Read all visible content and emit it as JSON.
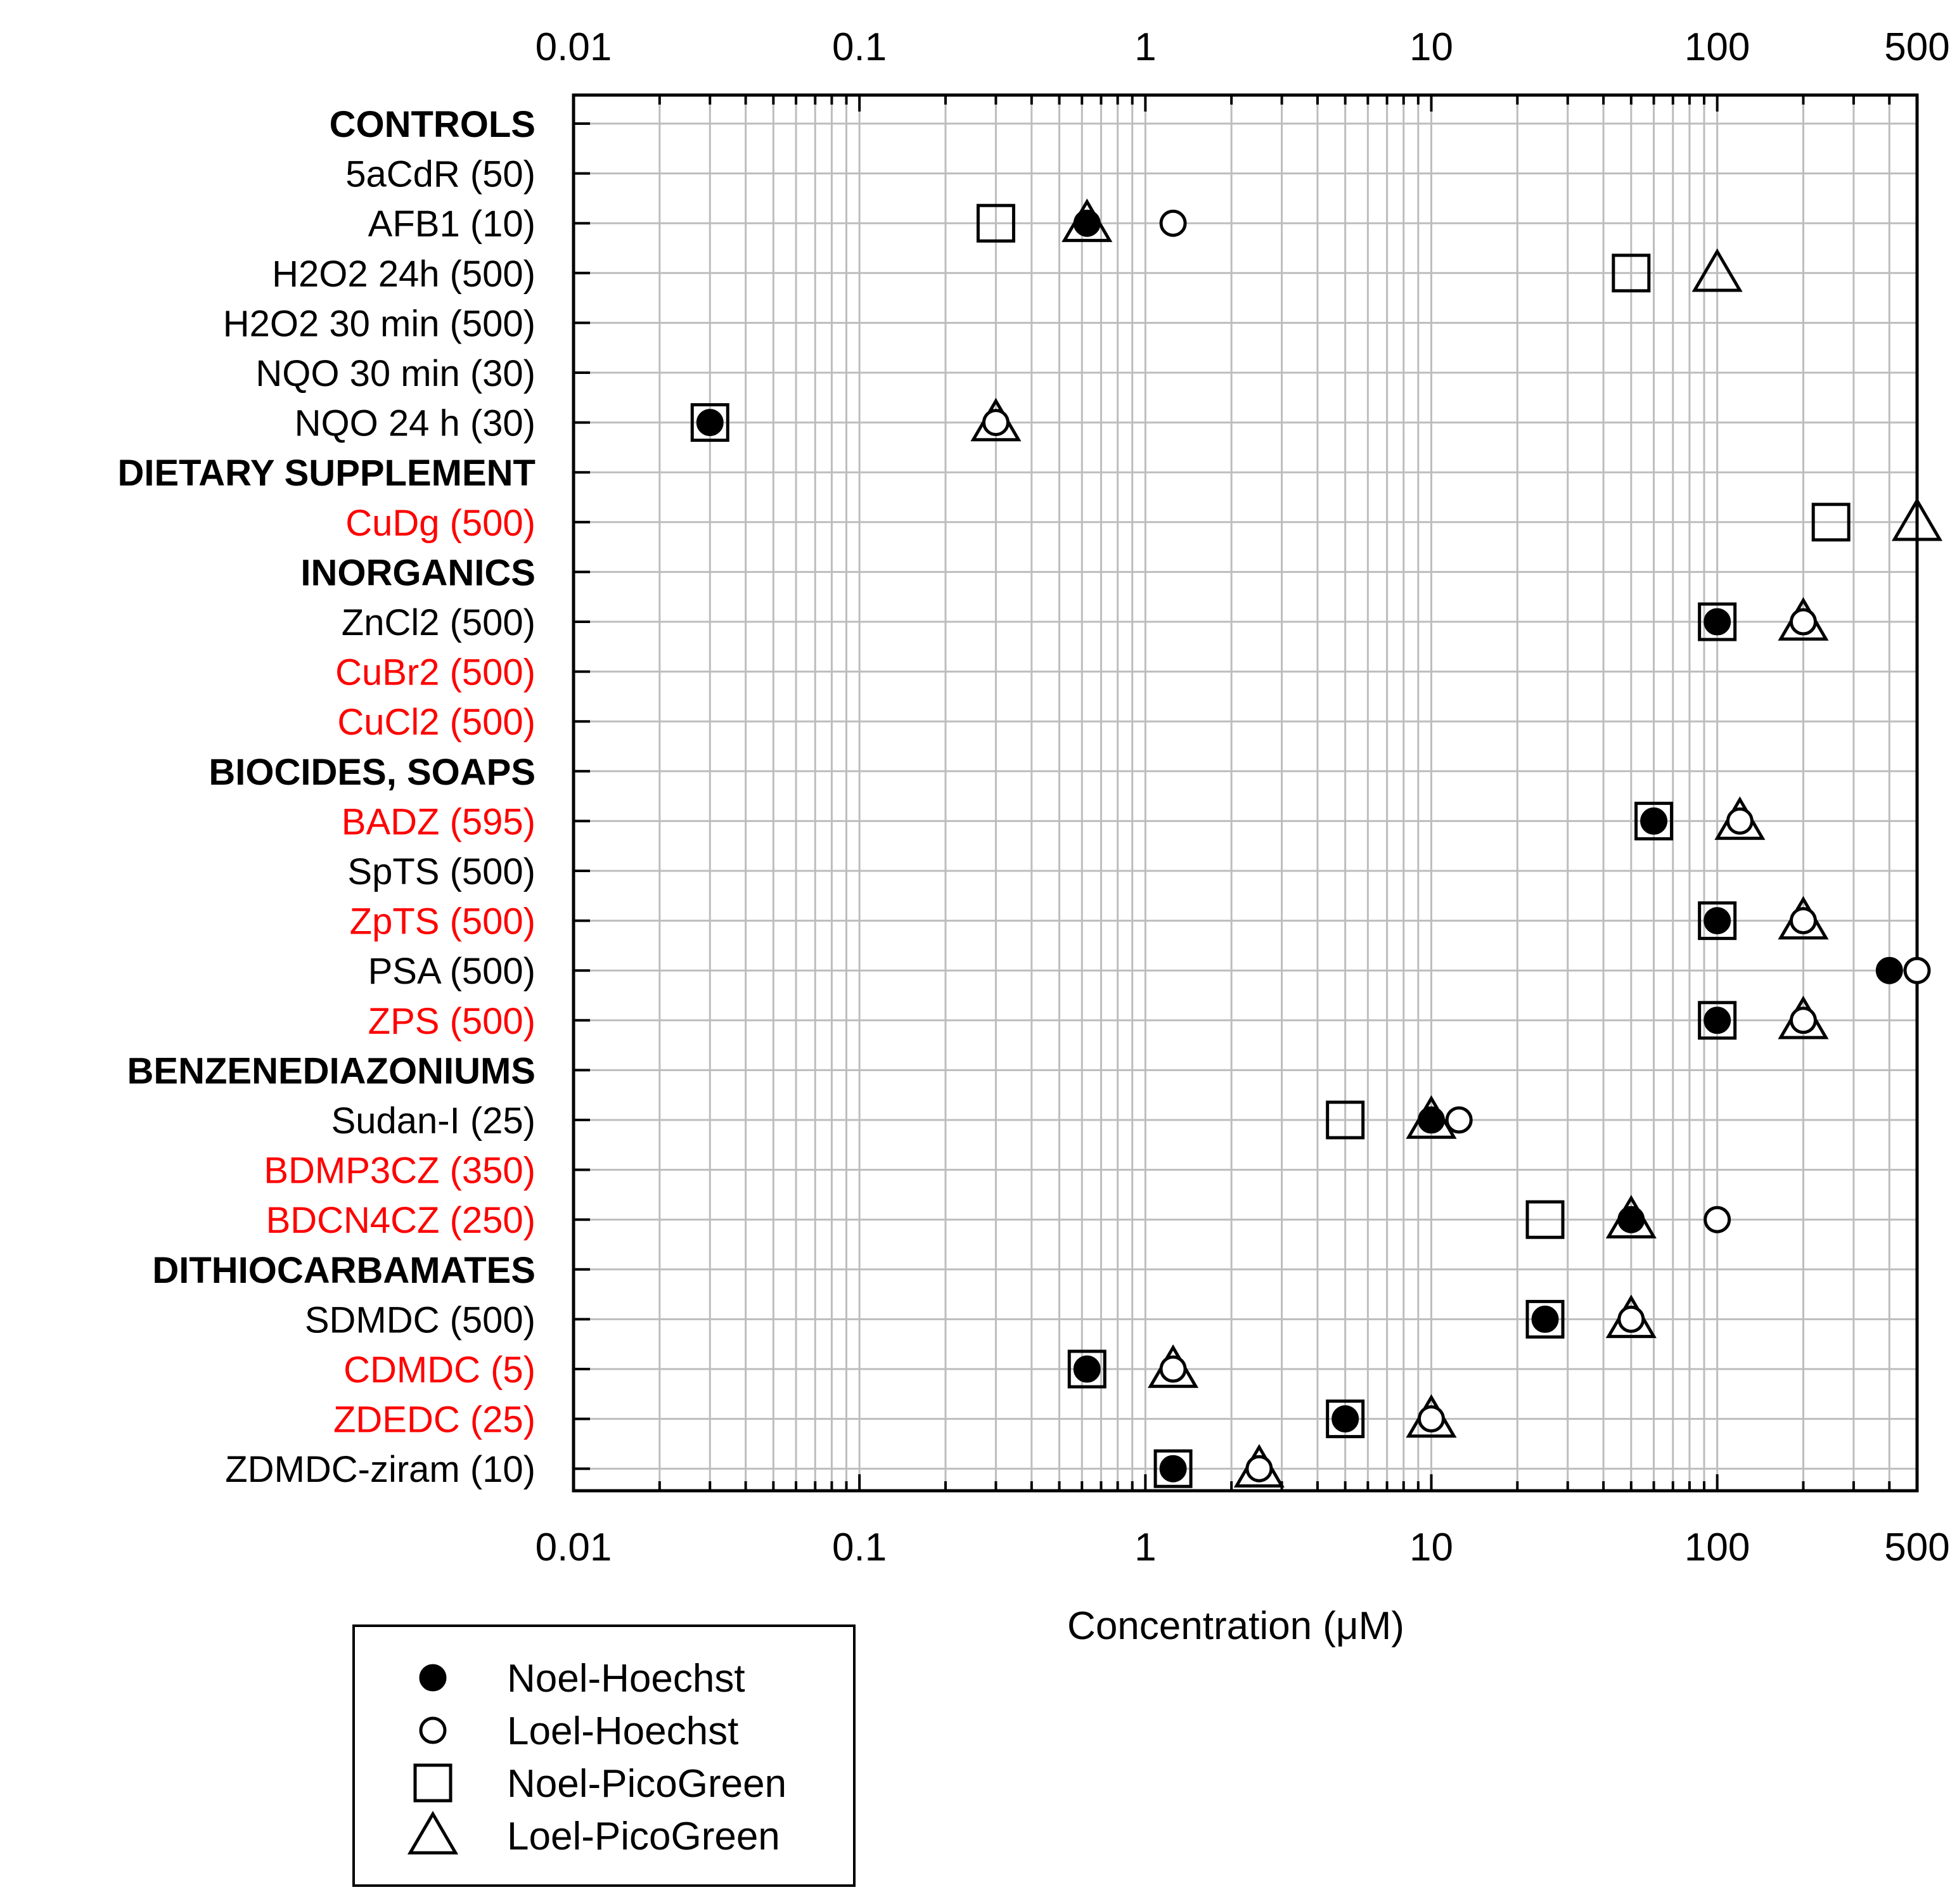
{
  "chart_data": {
    "type": "scatter",
    "x_scale": "log",
    "xlim": [
      0.01,
      500
    ],
    "x_ticks": [
      {
        "value": 0.01,
        "label": "0.01"
      },
      {
        "value": 0.1,
        "label": "0.1"
      },
      {
        "value": 1,
        "label": "1"
      },
      {
        "value": 10,
        "label": "10"
      },
      {
        "value": 100,
        "label": "100"
      },
      {
        "value": 500,
        "label": "500"
      }
    ],
    "xlabel": "Concentration (μM)",
    "grid": true,
    "legend_position": "bottom-left",
    "colors": {
      "black": "#000000",
      "red": "#ff0000",
      "grid": "#bdbdbd"
    },
    "categories": [
      {
        "label": "CONTROLS",
        "header": true,
        "color": "#000000"
      },
      {
        "label": "5aCdR (50)",
        "header": false,
        "color": "#000000"
      },
      {
        "label": "AFB1 (10)",
        "header": false,
        "color": "#000000"
      },
      {
        "label": "H2O2 24h (500)",
        "header": false,
        "color": "#000000"
      },
      {
        "label": "H2O2 30 min (500)",
        "header": false,
        "color": "#000000"
      },
      {
        "label": "NQO 30 min (30)",
        "header": false,
        "color": "#000000"
      },
      {
        "label": "NQO 24 h (30)",
        "header": false,
        "color": "#000000"
      },
      {
        "label": "DIETARY SUPPLEMENT",
        "header": true,
        "color": "#000000"
      },
      {
        "label": "CuDg (500)",
        "header": false,
        "color": "#ff0000"
      },
      {
        "label": "INORGANICS",
        "header": true,
        "color": "#000000"
      },
      {
        "label": "ZnCl2 (500)",
        "header": false,
        "color": "#000000"
      },
      {
        "label": "CuBr2 (500)",
        "header": false,
        "color": "#ff0000"
      },
      {
        "label": "CuCl2 (500)",
        "header": false,
        "color": "#ff0000"
      },
      {
        "label": "BIOCIDES, SOAPS",
        "header": true,
        "color": "#000000"
      },
      {
        "label": "BADZ (595)",
        "header": false,
        "color": "#ff0000"
      },
      {
        "label": "SpTS (500)",
        "header": false,
        "color": "#000000"
      },
      {
        "label": "ZpTS (500)",
        "header": false,
        "color": "#ff0000"
      },
      {
        "label": "PSA (500)",
        "header": false,
        "color": "#000000"
      },
      {
        "label": "ZPS (500)",
        "header": false,
        "color": "#ff0000"
      },
      {
        "label": "BENZENEDIAZONIUMS",
        "header": true,
        "color": "#000000"
      },
      {
        "label": "Sudan-I (25)",
        "header": false,
        "color": "#000000"
      },
      {
        "label": "BDMP3CZ (350)",
        "header": false,
        "color": "#ff0000"
      },
      {
        "label": "BDCN4CZ (250)",
        "header": false,
        "color": "#ff0000"
      },
      {
        "label": "DITHIOCARBAMATES",
        "header": true,
        "color": "#000000"
      },
      {
        "label": "SDMDC (500)",
        "header": false,
        "color": "#000000"
      },
      {
        "label": "CDMDC (5)",
        "header": false,
        "color": "#ff0000"
      },
      {
        "label": "ZDEDC (25)",
        "header": false,
        "color": "#ff0000"
      },
      {
        "label": "ZDMDC-ziram (10)",
        "header": false,
        "color": "#000000"
      }
    ],
    "series": [
      {
        "name": "Noel-Hoechst",
        "marker": "filled-circle",
        "points": [
          {
            "category": "AFB1 (10)",
            "x": 0.625
          },
          {
            "category": "NQO 24 h (30)",
            "x": 0.03
          },
          {
            "category": "ZnCl2 (500)",
            "x": 100
          },
          {
            "category": "BADZ (595)",
            "x": 60
          },
          {
            "category": "ZpTS (500)",
            "x": 100
          },
          {
            "category": "PSA (500)",
            "x": 400
          },
          {
            "category": "ZPS (500)",
            "x": 100
          },
          {
            "category": "Sudan-I (25)",
            "x": 10
          },
          {
            "category": "BDCN4CZ (250)",
            "x": 50
          },
          {
            "category": "SDMDC (500)",
            "x": 25
          },
          {
            "category": "CDMDC (5)",
            "x": 0.625
          },
          {
            "category": "ZDEDC (25)",
            "x": 5
          },
          {
            "category": "ZDMDC-ziram (10)",
            "x": 1.25
          }
        ]
      },
      {
        "name": "Loel-Hoechst",
        "marker": "open-circle",
        "points": [
          {
            "category": "AFB1 (10)",
            "x": 1.25
          },
          {
            "category": "NQO 24 h (30)",
            "x": 0.3
          },
          {
            "category": "ZnCl2 (500)",
            "x": 200
          },
          {
            "category": "BADZ (595)",
            "x": 120
          },
          {
            "category": "ZpTS (500)",
            "x": 200
          },
          {
            "category": "PSA (500)",
            "x": 500
          },
          {
            "category": "ZPS (500)",
            "x": 200
          },
          {
            "category": "Sudan-I (25)",
            "x": 12.5
          },
          {
            "category": "BDCN4CZ (250)",
            "x": 100
          },
          {
            "category": "SDMDC (500)",
            "x": 50
          },
          {
            "category": "CDMDC (5)",
            "x": 1.25
          },
          {
            "category": "ZDEDC (25)",
            "x": 10
          },
          {
            "category": "ZDMDC-ziram (10)",
            "x": 2.5
          }
        ]
      },
      {
        "name": "Noel-PicoGreen",
        "marker": "open-square",
        "points": [
          {
            "category": "AFB1 (10)",
            "x": 0.3
          },
          {
            "category": "H2O2 24h (500)",
            "x": 50
          },
          {
            "category": "NQO 24 h (30)",
            "x": 0.03
          },
          {
            "category": "CuDg (500)",
            "x": 250
          },
          {
            "category": "ZnCl2 (500)",
            "x": 100
          },
          {
            "category": "BADZ (595)",
            "x": 60
          },
          {
            "category": "ZpTS (500)",
            "x": 100
          },
          {
            "category": "ZPS (500)",
            "x": 100
          },
          {
            "category": "Sudan-I (25)",
            "x": 5
          },
          {
            "category": "BDCN4CZ (250)",
            "x": 25
          },
          {
            "category": "SDMDC (500)",
            "x": 25
          },
          {
            "category": "CDMDC (5)",
            "x": 0.625
          },
          {
            "category": "ZDEDC (25)",
            "x": 5
          },
          {
            "category": "ZDMDC-ziram (10)",
            "x": 1.25
          }
        ]
      },
      {
        "name": "Loel-PicoGreen",
        "marker": "open-triangle",
        "points": [
          {
            "category": "AFB1 (10)",
            "x": 0.625
          },
          {
            "category": "H2O2 24h (500)",
            "x": 100
          },
          {
            "category": "NQO 24 h (30)",
            "x": 0.3
          },
          {
            "category": "CuDg (500)",
            "x": 500
          },
          {
            "category": "ZnCl2 (500)",
            "x": 200
          },
          {
            "category": "BADZ (595)",
            "x": 120
          },
          {
            "category": "ZpTS (500)",
            "x": 200
          },
          {
            "category": "ZPS (500)",
            "x": 200
          },
          {
            "category": "Sudan-I (25)",
            "x": 10
          },
          {
            "category": "BDCN4CZ (250)",
            "x": 50
          },
          {
            "category": "SDMDC (500)",
            "x": 50
          },
          {
            "category": "CDMDC (5)",
            "x": 1.25
          },
          {
            "category": "ZDEDC (25)",
            "x": 10
          },
          {
            "category": "ZDMDC-ziram (10)",
            "x": 2.5
          }
        ]
      }
    ]
  }
}
